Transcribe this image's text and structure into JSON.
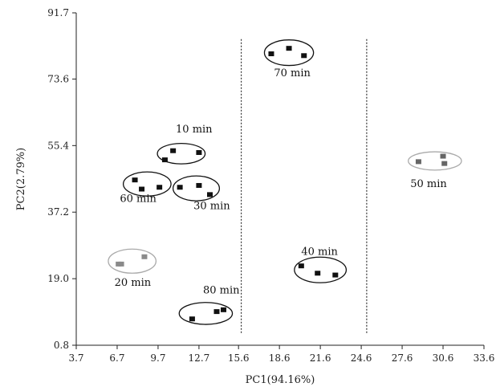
{
  "chart_data": {
    "type": "scatter",
    "title": "",
    "xlabel": "PC1(94.16%)",
    "ylabel": "PC2(2.79%)",
    "xlim": [
      3.7,
      33.6
    ],
    "ylim": [
      0.8,
      91.7
    ],
    "x_ticks": [
      3.7,
      6.7,
      9.7,
      12.7,
      15.6,
      18.6,
      21.6,
      24.6,
      27.6,
      30.6,
      33.6
    ],
    "x_tick_labels": [
      "3.7",
      "6.7",
      "9.7",
      "12.7",
      "15.6",
      "18.6",
      "21.6",
      "24.6",
      "27.6",
      "30.6",
      "33.6"
    ],
    "y_ticks": [
      0.8,
      19.0,
      37.2,
      55.4,
      73.6,
      91.7
    ],
    "y_tick_labels": [
      "0.8",
      "19.0",
      "37.2",
      "55.4",
      "73.6",
      "91.7"
    ],
    "grid": false,
    "reference_lines_x": [
      15.8,
      25.0
    ],
    "groups": [
      {
        "label": "10 min",
        "color": "#111111",
        "points": [
          [
            10.2,
            51.5
          ],
          [
            10.8,
            54.0
          ],
          [
            12.7,
            53.5
          ]
        ],
        "label_pos": [
          11.0,
          59.0
        ]
      },
      {
        "label": "60 min",
        "color": "#111111",
        "points": [
          [
            8.0,
            46.0
          ],
          [
            8.5,
            43.5
          ],
          [
            9.8,
            44.0
          ]
        ],
        "label_pos": [
          6.9,
          40.0
        ]
      },
      {
        "label": "30 min",
        "color": "#111111",
        "points": [
          [
            11.3,
            44.0
          ],
          [
            12.7,
            44.5
          ],
          [
            13.5,
            42.0
          ]
        ],
        "label_pos": [
          12.3,
          38.0
        ]
      },
      {
        "label": "20 min",
        "color": "#8a8a8a",
        "points": [
          [
            6.8,
            23.0
          ],
          [
            7.0,
            23.0
          ],
          [
            8.7,
            25.0
          ]
        ],
        "label_pos": [
          6.5,
          17.0
        ]
      },
      {
        "label": "80 min",
        "color": "#111111",
        "points": [
          [
            12.2,
            8.0
          ],
          [
            14.0,
            10.0
          ],
          [
            14.5,
            10.5
          ]
        ],
        "label_pos": [
          13.0,
          15.0
        ]
      },
      {
        "label": "70 min",
        "color": "#111111",
        "points": [
          [
            18.0,
            80.5
          ],
          [
            19.3,
            82.0
          ],
          [
            20.4,
            80.0
          ]
        ],
        "label_pos": [
          18.2,
          74.3
        ]
      },
      {
        "label": "40 min",
        "color": "#111111",
        "points": [
          [
            20.2,
            22.5
          ],
          [
            21.4,
            20.5
          ],
          [
            22.7,
            20.0
          ]
        ],
        "label_pos": [
          20.2,
          25.5
        ]
      },
      {
        "label": "50 min",
        "color": "#666666",
        "points": [
          [
            28.8,
            51.0
          ],
          [
            30.6,
            52.5
          ],
          [
            30.7,
            50.5
          ]
        ],
        "label_pos": [
          28.2,
          44.0
        ]
      }
    ],
    "ellipses": [
      {
        "group": "10 min",
        "cx": 11.4,
        "cy": 53.2,
        "rx": 1.75,
        "ry": 2.8,
        "color": "#111111"
      },
      {
        "group": "60 min",
        "cx": 8.9,
        "cy": 44.9,
        "rx": 1.75,
        "ry": 3.3,
        "color": "#111111"
      },
      {
        "group": "30 min",
        "cx": 12.5,
        "cy": 43.7,
        "rx": 1.7,
        "ry": 3.4,
        "color": "#111111"
      },
      {
        "group": "20 min",
        "cx": 7.8,
        "cy": 23.8,
        "rx": 1.75,
        "ry": 3.3,
        "color": "#aaaaaa"
      },
      {
        "group": "80 min",
        "cx": 13.2,
        "cy": 9.5,
        "rx": 1.95,
        "ry": 3.0,
        "color": "#111111"
      },
      {
        "group": "70 min",
        "cx": 19.3,
        "cy": 80.8,
        "rx": 1.8,
        "ry": 3.5,
        "color": "#111111"
      },
      {
        "group": "40 min",
        "cx": 21.6,
        "cy": 21.4,
        "rx": 1.9,
        "ry": 3.5,
        "color": "#111111"
      },
      {
        "group": "50 min",
        "cx": 30.0,
        "cy": 51.2,
        "rx": 1.95,
        "ry": 2.5,
        "color": "#aaaaaa"
      }
    ]
  }
}
